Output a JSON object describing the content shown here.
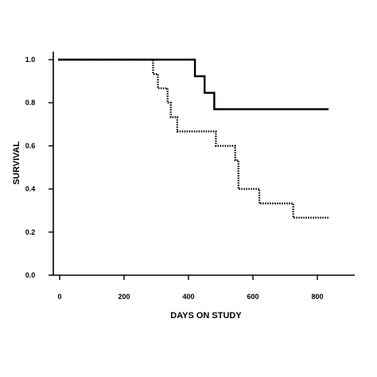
{
  "chart_data": {
    "type": "line",
    "title": "",
    "xlabel": "DAYS ON STUDY",
    "ylabel": "SURVIVAL",
    "xlim": [
      0,
      900
    ],
    "ylim": [
      0,
      1
    ],
    "x_ticks": [
      0,
      200,
      400,
      600,
      800
    ],
    "y_ticks": [
      0.0,
      0.2,
      0.4,
      0.6,
      0.8,
      1.0
    ],
    "x_tick_labels": [
      "0",
      "200",
      "400",
      "600",
      "800"
    ],
    "y_tick_labels": [
      "0.0",
      "0.2",
      "0.4",
      "0.6",
      "0.8",
      "1.0"
    ],
    "grid": false,
    "legend": "none",
    "series": [
      {
        "style": "solid",
        "color": "#000000",
        "step_points": [
          [
            -5,
            1.0
          ],
          [
            420,
            0.923
          ],
          [
            450,
            0.846
          ],
          [
            480,
            0.77
          ],
          [
            835,
            0.77
          ]
        ]
      },
      {
        "style": "dotted",
        "color": "#000000",
        "step_points": [
          [
            -5,
            1.0
          ],
          [
            290,
            0.933
          ],
          [
            305,
            0.867
          ],
          [
            335,
            0.8
          ],
          [
            345,
            0.733
          ],
          [
            365,
            0.667
          ],
          [
            485,
            0.6
          ],
          [
            545,
            0.533
          ],
          [
            555,
            0.4
          ],
          [
            620,
            0.333
          ],
          [
            725,
            0.267
          ],
          [
            835,
            0.267
          ]
        ]
      }
    ]
  }
}
